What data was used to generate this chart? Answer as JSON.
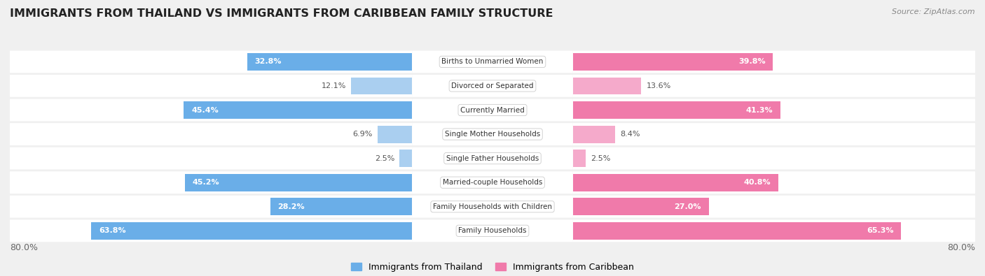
{
  "title": "IMMIGRANTS FROM THAILAND VS IMMIGRANTS FROM CARIBBEAN FAMILY STRUCTURE",
  "source": "Source: ZipAtlas.com",
  "categories": [
    "Family Households",
    "Family Households with Children",
    "Married-couple Households",
    "Single Father Households",
    "Single Mother Households",
    "Currently Married",
    "Divorced or Separated",
    "Births to Unmarried Women"
  ],
  "thailand_values": [
    63.8,
    28.2,
    45.2,
    2.5,
    6.9,
    45.4,
    12.1,
    32.8
  ],
  "caribbean_values": [
    65.3,
    27.0,
    40.8,
    2.5,
    8.4,
    41.3,
    13.6,
    39.8
  ],
  "max_value": 80.0,
  "thailand_color_strong": "#6aaee8",
  "thailand_color_light": "#aacff0",
  "caribbean_color_strong": "#f07aaa",
  "caribbean_color_light": "#f5aacb",
  "label_color_white": "#ffffff",
  "label_color_dark": "#555555",
  "strong_threshold": 20.0,
  "background_color": "#f0f0f0",
  "row_bg_color": "#ffffff",
  "row_border_color": "#cccccc",
  "legend_thailand": "Immigrants from Thailand",
  "legend_caribbean": "Immigrants from Caribbean",
  "title_fontsize": 11.5,
  "label_fontsize": 8,
  "category_fontsize": 7.5,
  "source_fontsize": 8
}
